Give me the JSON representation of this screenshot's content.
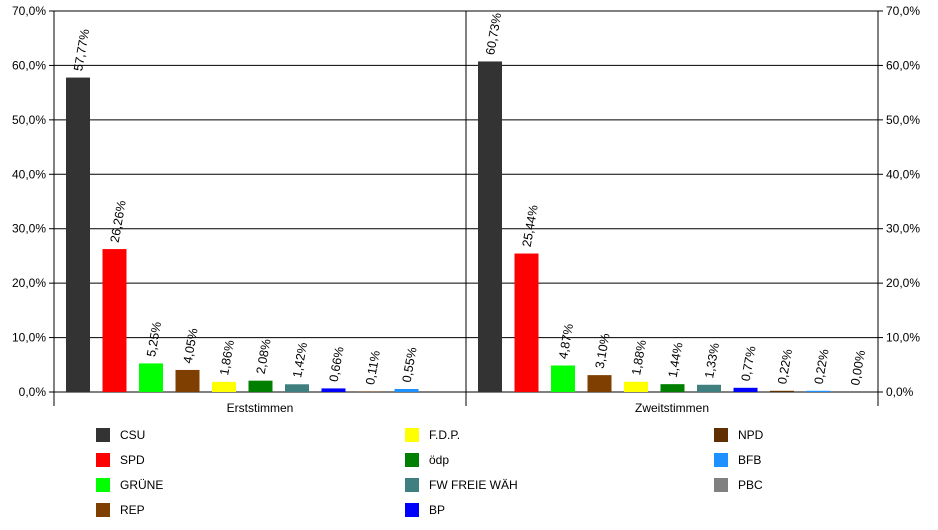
{
  "chart_data": {
    "type": "bar",
    "title": "",
    "xlabel": "",
    "ylabel": "",
    "ylim": [
      0,
      70
    ],
    "yticks": [
      "0,0%",
      "10,0%",
      "20,0%",
      "30,0%",
      "40,0%",
      "50,0%",
      "60,0%",
      "70,0%"
    ],
    "grid": true,
    "legend_position": "bottom",
    "categories": [
      "Erststimmen",
      "Zweitstimmen"
    ],
    "series": [
      {
        "name": "CSU",
        "color": "#333333",
        "values": [
          57.77,
          60.73
        ],
        "labels": [
          "57,77%",
          "60,73%"
        ]
      },
      {
        "name": "SPD",
        "color": "#ff0000",
        "values": [
          26.26,
          25.44
        ],
        "labels": [
          "26,26%",
          "25,44%"
        ]
      },
      {
        "name": "GRÜNE",
        "color": "#00ff00",
        "values": [
          5.25,
          4.87
        ],
        "labels": [
          "5,25%",
          "4,87%"
        ]
      },
      {
        "name": "REP",
        "color": "#7f3f00",
        "values": [
          4.05,
          3.1
        ],
        "labels": [
          "4,05%",
          "3,10%"
        ]
      },
      {
        "name": "F.D.P.",
        "color": "#ffff00",
        "values": [
          1.86,
          1.88
        ],
        "labels": [
          "1,86%",
          "1,88%"
        ]
      },
      {
        "name": "ödp",
        "color": "#007f00",
        "values": [
          2.08,
          1.44
        ],
        "labels": [
          "2,08%",
          "1,44%"
        ]
      },
      {
        "name": "FW FREIE WÄH",
        "color": "#3f7f7f",
        "values": [
          1.42,
          1.33
        ],
        "labels": [
          "1,42%",
          "1,33%"
        ]
      },
      {
        "name": "BP",
        "color": "#0000ff",
        "values": [
          0.66,
          0.77
        ],
        "labels": [
          "0,66%",
          "0,77%"
        ]
      },
      {
        "name": "NPD",
        "color": "#5f2f00",
        "values": [
          0.11,
          0.22
        ],
        "labels": [
          "0,11%",
          "0,22%"
        ]
      },
      {
        "name": "BFB",
        "color": "#1e90ff",
        "values": [
          0.55,
          0.22
        ],
        "labels": [
          "0,55%",
          "0,22%"
        ]
      },
      {
        "name": "PBC",
        "color": "#808080",
        "values": [
          null,
          0.0
        ],
        "labels": [
          null,
          "0,00%"
        ]
      }
    ]
  }
}
